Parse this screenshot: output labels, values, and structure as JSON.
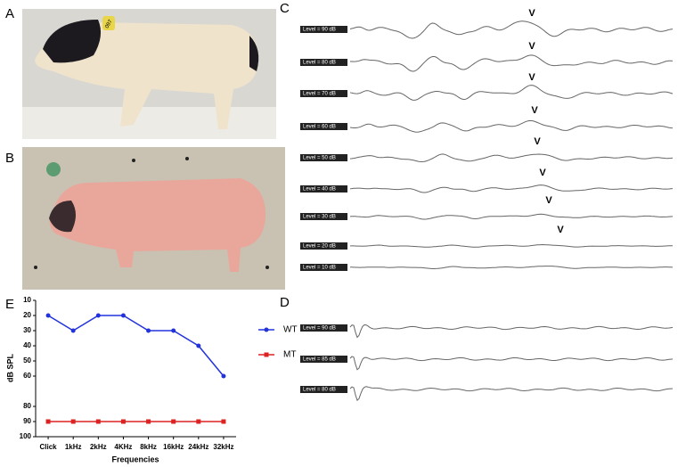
{
  "panel_labels": {
    "a": "A",
    "b": "B",
    "c": "C",
    "d": "D",
    "e": "E"
  },
  "panel_c": {
    "traces": [
      {
        "label": "Level = 90 dB",
        "marker": "V"
      },
      {
        "label": "Level = 80 dB",
        "marker": "V"
      },
      {
        "label": "Level = 70 dB",
        "marker": "V"
      },
      {
        "label": "Level = 60 dB",
        "marker": "V"
      },
      {
        "label": "Level = 50 dB",
        "marker": "V"
      },
      {
        "label": "Level = 40 dB",
        "marker": "V"
      },
      {
        "label": "Level = 30 dB",
        "marker": "V"
      },
      {
        "label": "Level = 20 dB",
        "marker": "V"
      },
      {
        "label": "Level = 10 dB"
      }
    ]
  },
  "panel_d": {
    "traces": [
      {
        "label": "Level = 90 dB"
      },
      {
        "label": "Level = 85 dB"
      },
      {
        "label": "Level = 80 dB"
      }
    ]
  },
  "photo_a": {
    "ear_tag": "097"
  },
  "chart_data": {
    "type": "line",
    "y_label": "dB SPL",
    "x_label": "Frequencies",
    "categories": [
      "Click",
      "1kHz",
      "2kHz",
      "4KHz",
      "8kHz",
      "16kHz",
      "24kHz",
      "32kHz"
    ],
    "series": [
      {
        "name": "WT",
        "color": "#2233dd",
        "marker": "circle",
        "values": [
          20,
          30,
          20,
          20,
          30,
          30,
          40,
          60
        ]
      },
      {
        "name": "MT",
        "color": "#dd2222",
        "marker": "square",
        "values": [
          90,
          90,
          90,
          90,
          90,
          90,
          90,
          90
        ]
      }
    ],
    "ylim": [
      100,
      10
    ],
    "yticks": [
      10,
      20,
      30,
      40,
      50,
      60,
      80,
      90,
      100
    ]
  }
}
